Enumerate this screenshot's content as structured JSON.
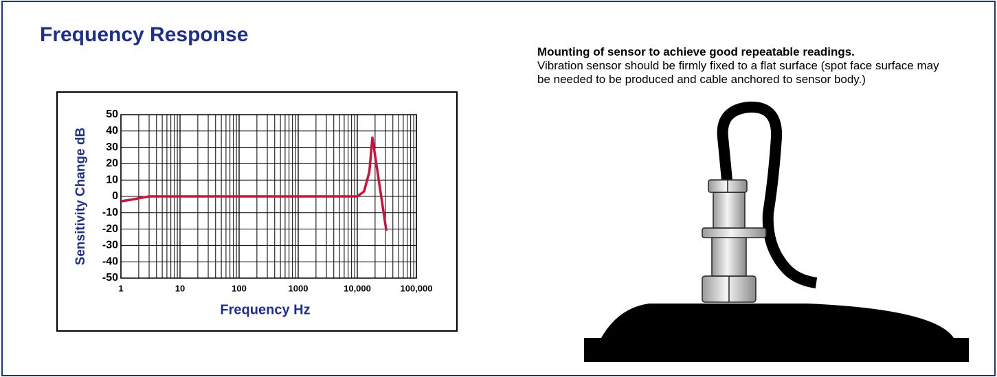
{
  "heading": "Frequency Response",
  "mounting": {
    "title": "Mounting of sensor to achieve good repeatable readings.",
    "text": "Vibration sensor should be firmly fixed to a flat surface (spot face surface may be needed to be produced and cable anchored to sensor body.)"
  },
  "chart_data": {
    "type": "line",
    "x_label": "Frequency Hz",
    "y_label": "Sensitivity Change dB",
    "log_x": true,
    "grid": true,
    "color": "#d0103a",
    "xlim": [
      1,
      100000
    ],
    "ylim": [
      -50,
      50
    ],
    "xticks": [
      1,
      10,
      100,
      1000,
      {
        "value": 10000,
        "label": "10,000"
      },
      {
        "value": 100000,
        "label": "100,000"
      }
    ],
    "yticks": [
      50,
      40,
      30,
      20,
      10,
      0,
      -10,
      -20,
      -30,
      -40,
      -50
    ],
    "x": [
      1,
      1.5,
      2.5,
      3,
      10000,
      13000,
      16000,
      18000,
      22000,
      31000
    ],
    "values": [
      -3,
      -2,
      -0.5,
      0,
      0,
      3,
      15,
      36,
      15,
      -21
    ]
  }
}
